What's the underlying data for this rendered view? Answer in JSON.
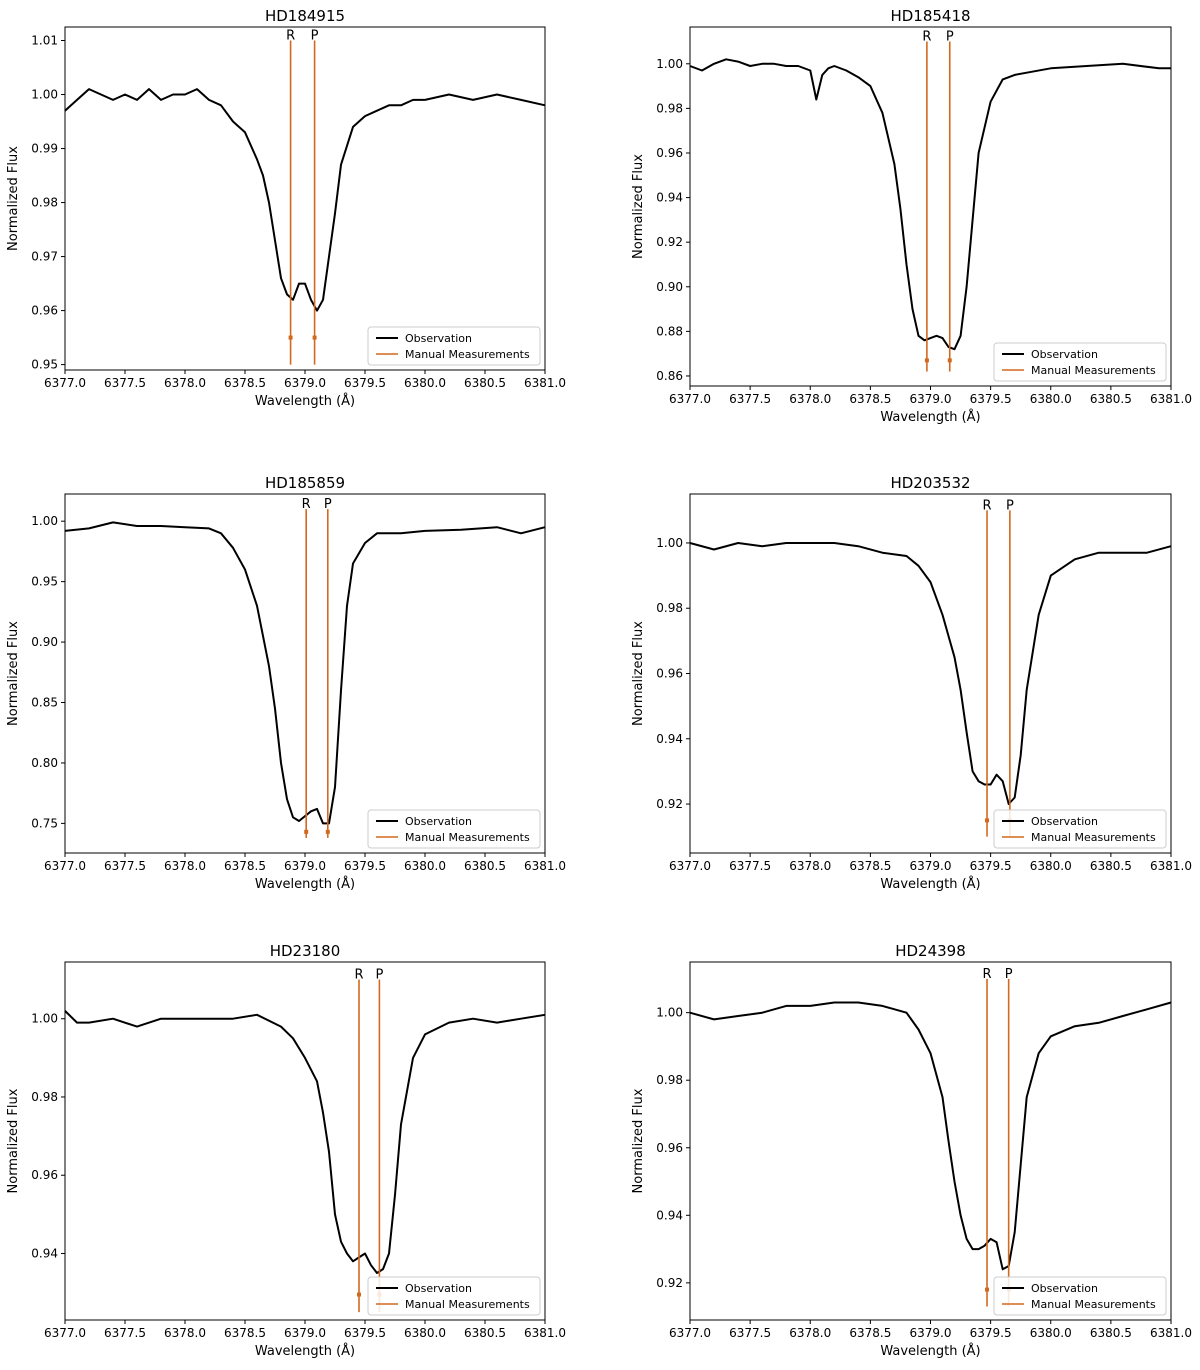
{
  "figure": {
    "colors": {
      "observation": "#000000",
      "manual": "#d2691e"
    }
  },
  "chart_data": [
    {
      "type": "line",
      "title": "HD184915",
      "xlabel": "Wavelength (Å)",
      "ylabel": "Normalized Flux",
      "xlim": [
        6377.0,
        6381.0
      ],
      "ylim": [
        0.949,
        1.0125
      ],
      "xticks": [
        "6377.0",
        "6377.5",
        "6378.0",
        "6378.5",
        "6379.0",
        "6379.5",
        "6380.0",
        "6380.5",
        "6381.0"
      ],
      "yticks": [
        "0.95",
        "0.96",
        "0.97",
        "0.98",
        "0.99",
        "1.00",
        "1.01"
      ],
      "legend": {
        "position": "lower-right",
        "entries": [
          "Observation",
          "Manual Measurements"
        ]
      },
      "markers": [
        {
          "label": "R",
          "x": 6378.88,
          "error_y": 0.955
        },
        {
          "label": "P",
          "x": 6379.08,
          "error_y": 0.955
        }
      ],
      "marker_top": 1.01,
      "marker_bottom": 0.95,
      "series": [
        {
          "color": "#000000",
          "x": [
            6377.0,
            6377.1,
            6377.2,
            6377.3,
            6377.4,
            6377.5,
            6377.6,
            6377.7,
            6377.8,
            6377.9,
            6378.0,
            6378.1,
            6378.2,
            6378.3,
            6378.4,
            6378.5,
            6378.6,
            6378.65,
            6378.7,
            6378.75,
            6378.8,
            6378.85,
            6378.9,
            6378.95,
            6379.0,
            6379.05,
            6379.1,
            6379.15,
            6379.2,
            6379.25,
            6379.3,
            6379.4,
            6379.5,
            6379.6,
            6379.7,
            6379.8,
            6379.9,
            6380.0,
            6380.2,
            6380.4,
            6380.6,
            6380.8,
            6381.0
          ],
          "y": [
            0.997,
            0.999,
            1.001,
            1.0,
            0.999,
            1.0,
            0.999,
            1.001,
            0.999,
            1.0,
            1.0,
            1.001,
            0.999,
            0.998,
            0.995,
            0.993,
            0.988,
            0.985,
            0.98,
            0.973,
            0.966,
            0.963,
            0.962,
            0.965,
            0.965,
            0.962,
            0.96,
            0.962,
            0.97,
            0.978,
            0.987,
            0.994,
            0.996,
            0.997,
            0.998,
            0.998,
            0.999,
            0.999,
            1.0,
            0.999,
            1.0,
            0.999,
            0.998
          ]
        }
      ]
    },
    {
      "type": "line",
      "title": "HD185418",
      "xlabel": "Wavelength (Å)",
      "ylabel": "Normalized Flux",
      "xlim": [
        6377.0,
        6381.0
      ],
      "ylim": [
        0.8555,
        1.0165
      ],
      "xticks": [
        "6377.0",
        "6377.5",
        "6378.0",
        "6378.5",
        "6379.0",
        "6379.5",
        "6380.0",
        "6380.5",
        "6381.0"
      ],
      "yticks": [
        "0.86",
        "0.88",
        "0.90",
        "0.92",
        "0.94",
        "0.96",
        "0.98",
        "1.00"
      ],
      "legend": {
        "position": "lower-right",
        "entries": [
          "Observation",
          "Manual Measurements"
        ]
      },
      "markers": [
        {
          "label": "R",
          "x": 6378.97,
          "error_y": 0.867
        },
        {
          "label": "P",
          "x": 6379.16,
          "error_y": 0.867
        }
      ],
      "marker_top": 1.01,
      "marker_bottom": 0.862,
      "series": [
        {
          "color": "#000000",
          "x": [
            6377.0,
            6377.1,
            6377.2,
            6377.3,
            6377.4,
            6377.5,
            6377.6,
            6377.7,
            6377.8,
            6377.9,
            6378.0,
            6378.05,
            6378.1,
            6378.15,
            6378.2,
            6378.3,
            6378.4,
            6378.5,
            6378.6,
            6378.7,
            6378.75,
            6378.8,
            6378.85,
            6378.9,
            6378.95,
            6379.0,
            6379.05,
            6379.1,
            6379.15,
            6379.2,
            6379.25,
            6379.3,
            6379.35,
            6379.4,
            6379.5,
            6379.6,
            6379.7,
            6379.8,
            6380.0,
            6380.3,
            6380.6,
            6380.9,
            6381.0
          ],
          "y": [
            0.999,
            0.997,
            1.0,
            1.002,
            1.001,
            0.999,
            1.0,
            1.0,
            0.999,
            0.999,
            0.997,
            0.984,
            0.995,
            0.998,
            0.999,
            0.997,
            0.994,
            0.99,
            0.978,
            0.955,
            0.935,
            0.91,
            0.89,
            0.878,
            0.876,
            0.877,
            0.878,
            0.877,
            0.873,
            0.872,
            0.878,
            0.9,
            0.93,
            0.96,
            0.983,
            0.993,
            0.995,
            0.996,
            0.998,
            0.999,
            1.0,
            0.998,
            0.998
          ]
        }
      ]
    },
    {
      "type": "line",
      "title": "HD185859",
      "xlabel": "Wavelength (Å)",
      "ylabel": "Normalized Flux",
      "xlim": [
        6377.0,
        6381.0
      ],
      "ylim": [
        0.7255,
        1.0225
      ],
      "xticks": [
        "6377.0",
        "6377.5",
        "6378.0",
        "6378.5",
        "6379.0",
        "6379.5",
        "6380.0",
        "6380.5",
        "6381.0"
      ],
      "yticks": [
        "0.75",
        "0.80",
        "0.85",
        "0.90",
        "0.95",
        "1.00"
      ],
      "legend": {
        "position": "lower-right",
        "entries": [
          "Observation",
          "Manual Measurements"
        ]
      },
      "markers": [
        {
          "label": "R",
          "x": 6379.01,
          "error_y": 0.743
        },
        {
          "label": "P",
          "x": 6379.19,
          "error_y": 0.743
        }
      ],
      "marker_top": 1.01,
      "marker_bottom": 0.738,
      "series": [
        {
          "color": "#000000",
          "x": [
            6377.0,
            6377.2,
            6377.4,
            6377.6,
            6377.8,
            6378.0,
            6378.2,
            6378.3,
            6378.4,
            6378.5,
            6378.6,
            6378.7,
            6378.75,
            6378.8,
            6378.85,
            6378.9,
            6378.95,
            6379.0,
            6379.05,
            6379.1,
            6379.15,
            6379.2,
            6379.25,
            6379.3,
            6379.35,
            6379.4,
            6379.5,
            6379.6,
            6379.8,
            6380.0,
            6380.3,
            6380.6,
            6380.8,
            6381.0
          ],
          "y": [
            0.992,
            0.994,
            0.999,
            0.996,
            0.996,
            0.995,
            0.994,
            0.99,
            0.978,
            0.96,
            0.93,
            0.88,
            0.845,
            0.8,
            0.77,
            0.755,
            0.752,
            0.756,
            0.76,
            0.762,
            0.75,
            0.75,
            0.78,
            0.86,
            0.93,
            0.965,
            0.982,
            0.99,
            0.99,
            0.992,
            0.993,
            0.995,
            0.99,
            0.995
          ]
        }
      ]
    },
    {
      "type": "line",
      "title": "HD203532",
      "xlabel": "Wavelength (Å)",
      "ylabel": "Normalized Flux",
      "xlim": [
        6377.0,
        6381.0
      ],
      "ylim": [
        0.905,
        1.015
      ],
      "xticks": [
        "6377.0",
        "6377.5",
        "6378.0",
        "6378.5",
        "6379.0",
        "6379.5",
        "6380.0",
        "6380.5",
        "6381.0"
      ],
      "yticks": [
        "0.92",
        "0.94",
        "0.96",
        "0.98",
        "1.00"
      ],
      "legend": {
        "position": "lower-right",
        "entries": [
          "Observation",
          "Manual Measurements"
        ]
      },
      "markers": [
        {
          "label": "R",
          "x": 6379.47,
          "error_y": 0.915
        },
        {
          "label": "P",
          "x": 6379.66,
          "error_y": 0.915
        }
      ],
      "marker_top": 1.01,
      "marker_bottom": 0.91,
      "series": [
        {
          "color": "#000000",
          "x": [
            6377.0,
            6377.2,
            6377.4,
            6377.6,
            6377.8,
            6378.0,
            6378.2,
            6378.4,
            6378.6,
            6378.8,
            6378.9,
            6379.0,
            6379.1,
            6379.2,
            6379.25,
            6379.3,
            6379.35,
            6379.4,
            6379.45,
            6379.5,
            6379.55,
            6379.6,
            6379.65,
            6379.7,
            6379.75,
            6379.8,
            6379.9,
            6380.0,
            6380.2,
            6380.4,
            6380.6,
            6380.8,
            6381.0
          ],
          "y": [
            1.0,
            0.998,
            1.0,
            0.999,
            1.0,
            1.0,
            1.0,
            0.999,
            0.997,
            0.996,
            0.993,
            0.988,
            0.978,
            0.965,
            0.955,
            0.942,
            0.93,
            0.927,
            0.926,
            0.926,
            0.929,
            0.927,
            0.92,
            0.922,
            0.935,
            0.955,
            0.978,
            0.99,
            0.995,
            0.997,
            0.997,
            0.997,
            0.999
          ]
        }
      ]
    },
    {
      "type": "line",
      "title": "HD23180",
      "xlabel": "Wavelength (Å)",
      "ylabel": "Normalized Flux",
      "xlim": [
        6377.0,
        6381.0
      ],
      "ylim": [
        0.923,
        1.0145
      ],
      "xticks": [
        "6377.0",
        "6377.5",
        "6378.0",
        "6378.5",
        "6379.0",
        "6379.5",
        "6380.0",
        "6380.5",
        "6381.0"
      ],
      "yticks": [
        "0.94",
        "0.96",
        "0.98",
        "1.00"
      ],
      "legend": {
        "position": "lower-right",
        "entries": [
          "Observation",
          "Manual Measurements"
        ]
      },
      "markers": [
        {
          "label": "R",
          "x": 6379.45,
          "error_y": 0.9295
        },
        {
          "label": "P",
          "x": 6379.62,
          "error_y": 0.9295
        }
      ],
      "marker_top": 1.01,
      "marker_bottom": 0.925,
      "series": [
        {
          "color": "#000000",
          "x": [
            6377.0,
            6377.1,
            6377.2,
            6377.4,
            6377.6,
            6377.8,
            6378.0,
            6378.2,
            6378.4,
            6378.6,
            6378.8,
            6378.9,
            6379.0,
            6379.1,
            6379.15,
            6379.2,
            6379.25,
            6379.3,
            6379.35,
            6379.4,
            6379.45,
            6379.5,
            6379.55,
            6379.6,
            6379.65,
            6379.7,
            6379.75,
            6379.8,
            6379.9,
            6380.0,
            6380.2,
            6380.4,
            6380.6,
            6380.8,
            6381.0
          ],
          "y": [
            1.002,
            0.999,
            0.999,
            1.0,
            0.998,
            1.0,
            1.0,
            1.0,
            1.0,
            1.001,
            0.998,
            0.995,
            0.99,
            0.984,
            0.976,
            0.966,
            0.95,
            0.943,
            0.94,
            0.938,
            0.939,
            0.94,
            0.937,
            0.935,
            0.936,
            0.94,
            0.955,
            0.973,
            0.99,
            0.996,
            0.999,
            1.0,
            0.999,
            1.0,
            1.001
          ]
        }
      ]
    },
    {
      "type": "line",
      "title": "HD24398",
      "xlabel": "Wavelength (Å)",
      "ylabel": "Normalized Flux",
      "xlim": [
        6377.0,
        6381.0
      ],
      "ylim": [
        0.909,
        1.015
      ],
      "xticks": [
        "6377.0",
        "6377.5",
        "6378.0",
        "6378.5",
        "6379.0",
        "6379.5",
        "6380.0",
        "6380.5",
        "6381.0"
      ],
      "yticks": [
        "0.92",
        "0.94",
        "0.96",
        "0.98",
        "1.00"
      ],
      "legend": {
        "position": "lower-right",
        "entries": [
          "Observation",
          "Manual Measurements"
        ]
      },
      "markers": [
        {
          "label": "R",
          "x": 6379.47,
          "error_y": 0.918
        },
        {
          "label": "P",
          "x": 6379.65,
          "error_y": 0.918
        }
      ],
      "marker_top": 1.01,
      "marker_bottom": 0.913,
      "series": [
        {
          "color": "#000000",
          "x": [
            6377.0,
            6377.2,
            6377.4,
            6377.6,
            6377.8,
            6378.0,
            6378.2,
            6378.4,
            6378.6,
            6378.8,
            6378.9,
            6379.0,
            6379.1,
            6379.15,
            6379.2,
            6379.25,
            6379.3,
            6379.35,
            6379.4,
            6379.45,
            6379.5,
            6379.55,
            6379.6,
            6379.65,
            6379.7,
            6379.75,
            6379.8,
            6379.9,
            6380.0,
            6380.2,
            6380.4,
            6380.6,
            6380.8,
            6381.0
          ],
          "y": [
            1.0,
            0.998,
            0.999,
            1.0,
            1.002,
            1.002,
            1.003,
            1.003,
            1.002,
            1.0,
            0.995,
            0.988,
            0.975,
            0.962,
            0.95,
            0.94,
            0.933,
            0.93,
            0.93,
            0.931,
            0.933,
            0.932,
            0.924,
            0.925,
            0.935,
            0.955,
            0.975,
            0.988,
            0.993,
            0.996,
            0.997,
            0.999,
            1.001,
            1.003
          ]
        }
      ]
    }
  ]
}
